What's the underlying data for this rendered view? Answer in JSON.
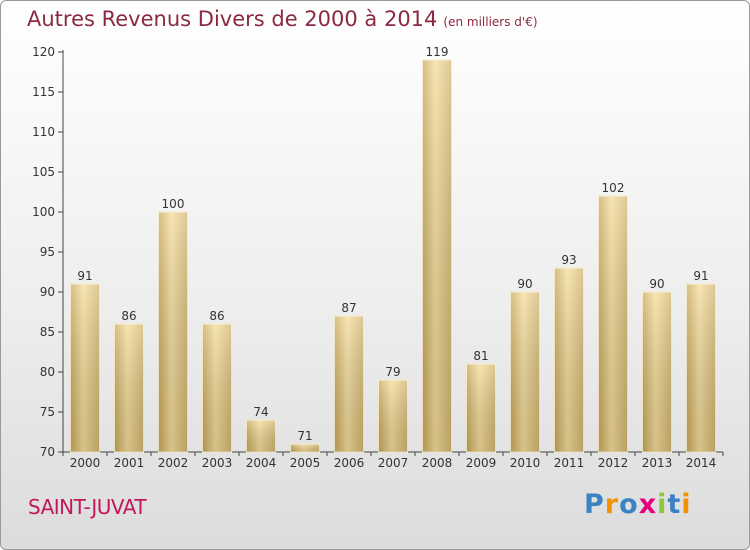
{
  "title": "Autres Revenus Divers de 2000 à 2014",
  "title_unit": "(en milliers d'€)",
  "commune": "SAINT-JUVAT",
  "logo": {
    "text": "Proxiti",
    "letters": [
      {
        "ch": "P",
        "color": "#3b82c4"
      },
      {
        "ch": "r",
        "color": "#f39200"
      },
      {
        "ch": "o",
        "color": "#3b82c4"
      },
      {
        "ch": "x",
        "color": "#e6007e"
      },
      {
        "ch": "i",
        "color": "#8dc63f"
      },
      {
        "ch": "t",
        "color": "#3b82c4"
      },
      {
        "ch": "i",
        "color": "#f39200"
      }
    ]
  },
  "chart_data": {
    "type": "bar",
    "categories": [
      "2000",
      "2001",
      "2002",
      "2003",
      "2004",
      "2005",
      "2006",
      "2007",
      "2008",
      "2009",
      "2010",
      "2011",
      "2012",
      "2013",
      "2014"
    ],
    "values": [
      91,
      86,
      100,
      86,
      74,
      71,
      87,
      79,
      119,
      81,
      90,
      93,
      102,
      90,
      91
    ],
    "ylim": [
      70,
      120
    ],
    "yticks": [
      70,
      75,
      80,
      85,
      90,
      95,
      100,
      105,
      110,
      115,
      120
    ],
    "grid": false,
    "bar_color": "#e2c27a",
    "title": "Autres Revenus Divers de 2000 à 2014",
    "xlabel": "",
    "ylabel": ""
  }
}
